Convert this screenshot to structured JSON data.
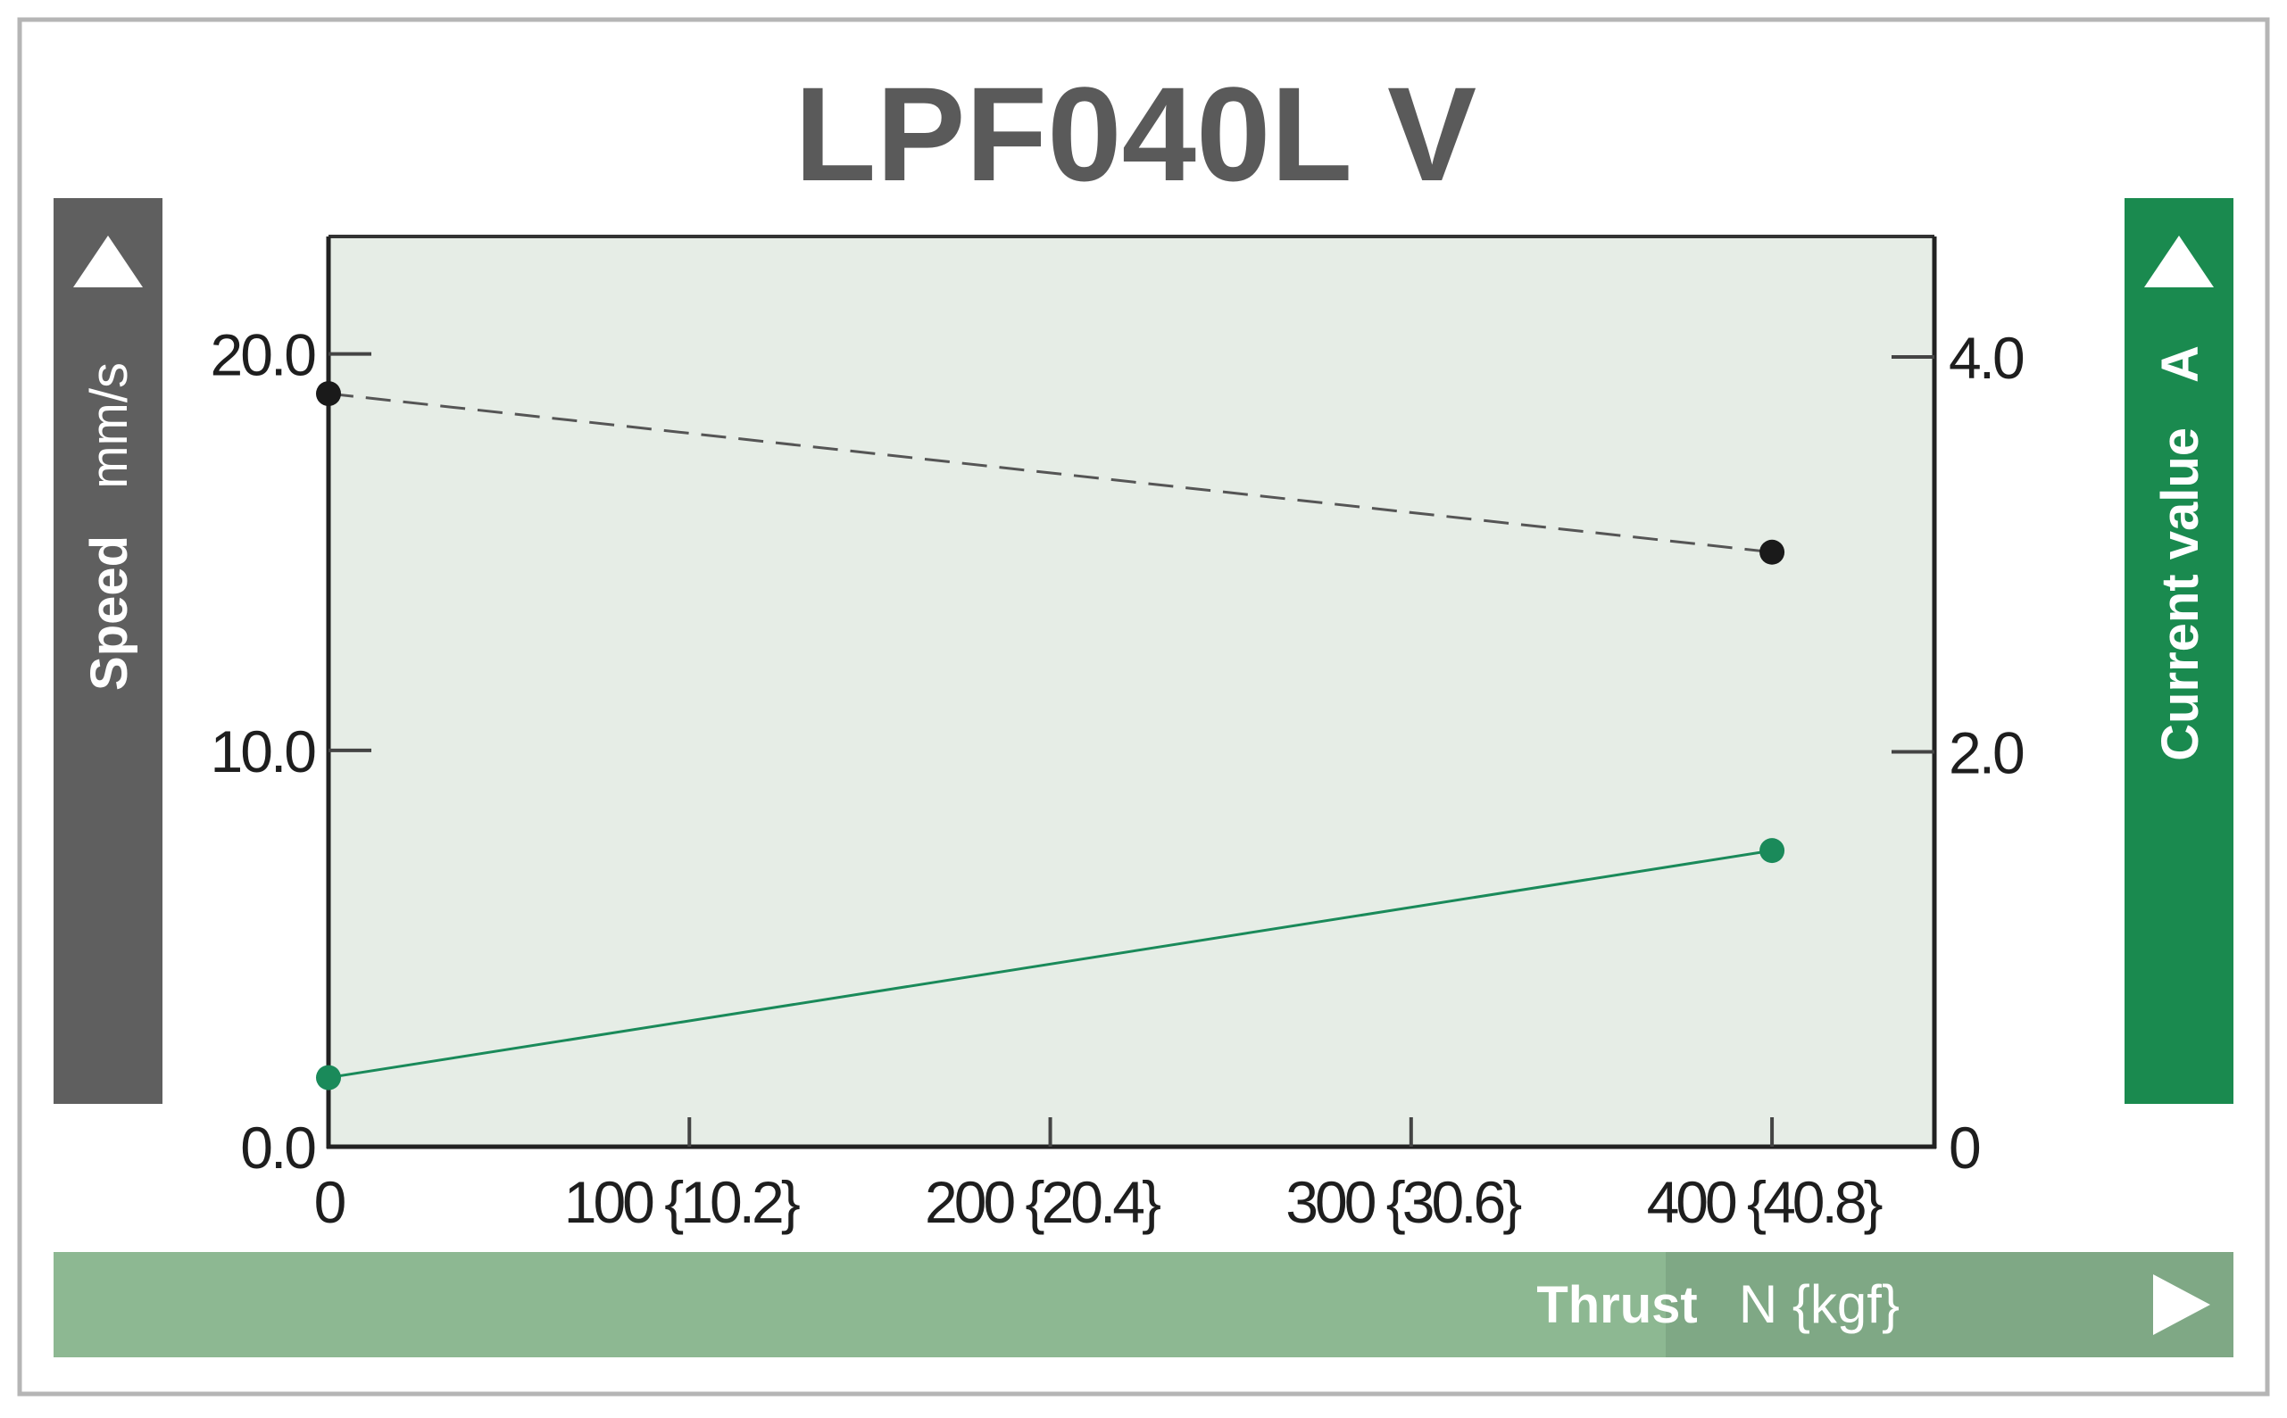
{
  "chart_data": {
    "type": "line",
    "title": "LPF040L V",
    "left_axis": {
      "label": "Speed",
      "unit": "mm/s",
      "ylim": [
        0,
        24
      ],
      "ticks": [
        0,
        10,
        20
      ],
      "tick_labels": [
        "0.0",
        "10.0",
        "20.0"
      ]
    },
    "right_axis": {
      "label": "Current value",
      "unit": "A",
      "ylim": [
        0,
        4.8
      ],
      "ticks": [
        0,
        2,
        4
      ],
      "tick_labels": [
        "0",
        "2.0",
        "4.0"
      ]
    },
    "x_axis": {
      "label": "Thrust",
      "unit": "N {kgf}",
      "xlim": [
        0,
        445
      ],
      "ticks": [
        0,
        100,
        200,
        300,
        400
      ],
      "tick_labels": [
        "0",
        "100 {10.2}",
        "200 {20.4}",
        "300 {30.6}",
        "400 {40.8}"
      ]
    },
    "series": [
      {
        "axis": "left",
        "style": "dashed",
        "color": "#1a1a1a",
        "x": [
          0,
          400
        ],
        "y": [
          19.0,
          15.0
        ]
      },
      {
        "axis": "right",
        "style": "solid",
        "color": "#1a8a5a",
        "x": [
          0,
          400
        ],
        "y": [
          0.35,
          1.5
        ]
      }
    ],
    "grid": false,
    "colors": {
      "plot_background": "#e6ede6",
      "left_band": "#5f5f5f",
      "right_band": "#1a8a4f",
      "bottom_band": "#8db892",
      "bottom_band_label_bg": "#7fa885",
      "title": "#5a5a5a",
      "frame": "#b5b5b5"
    }
  }
}
